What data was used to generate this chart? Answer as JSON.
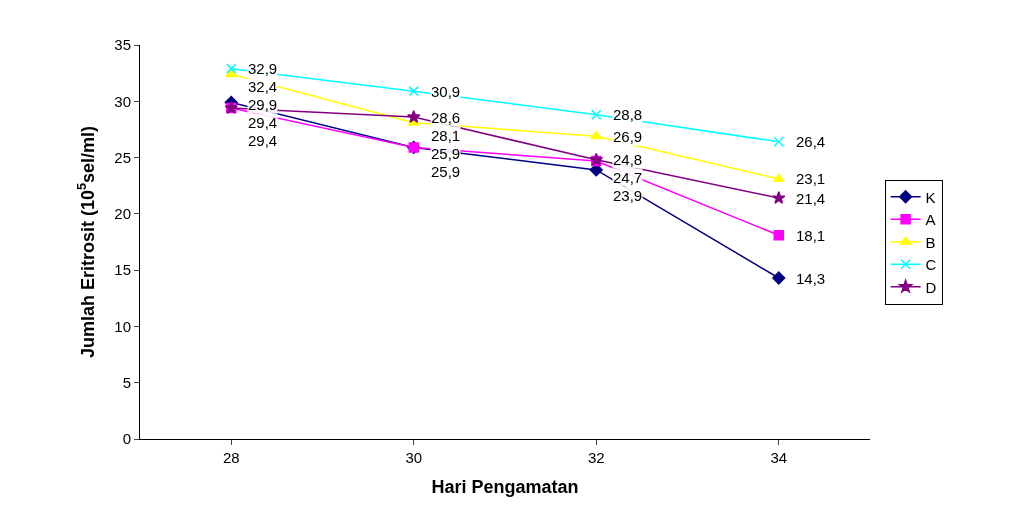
{
  "chart_data": {
    "type": "line",
    "xlabel": "Hari Pengamatan",
    "ylabel": "Jumlah Eritrosit (10$^{5}$sel/ml)",
    "categories": [
      "28",
      "30",
      "32",
      "34"
    ],
    "ylim": [
      0,
      35
    ],
    "yticks": [
      0,
      5,
      10,
      15,
      20,
      25,
      30,
      35
    ],
    "grid": false,
    "legend": "right",
    "line_style": "solid",
    "series": [
      {
        "name": "K",
        "color": "#000080",
        "marker": "diamond",
        "values": [
          29.9,
          25.9,
          23.9,
          14.3
        ],
        "value_labels": [
          "29,9",
          "25,9",
          "23,9",
          "14,3"
        ]
      },
      {
        "name": "A",
        "color": "#ff00ff",
        "marker": "square",
        "values": [
          29.4,
          25.9,
          24.7,
          18.1
        ],
        "value_labels": [
          "29,4",
          "25,9",
          "24,7",
          "18,1"
        ]
      },
      {
        "name": "B",
        "color": "#ffff00",
        "marker": "triangle",
        "values": [
          32.4,
          28.1,
          26.9,
          23.1
        ],
        "value_labels": [
          "32,4",
          "28,1",
          "26,9",
          "23,1"
        ]
      },
      {
        "name": "C",
        "color": "#00ffff",
        "marker": "cross",
        "values": [
          32.9,
          30.9,
          28.8,
          26.4
        ],
        "value_labels": [
          "32,9",
          "30,9",
          "28,8",
          "26,4"
        ]
      },
      {
        "name": "D",
        "color": "#800080",
        "marker": "star",
        "values": [
          29.4,
          28.6,
          24.8,
          21.4
        ],
        "value_labels": [
          "29,4",
          "28,6",
          "24,8",
          "21,4"
        ]
      }
    ]
  }
}
